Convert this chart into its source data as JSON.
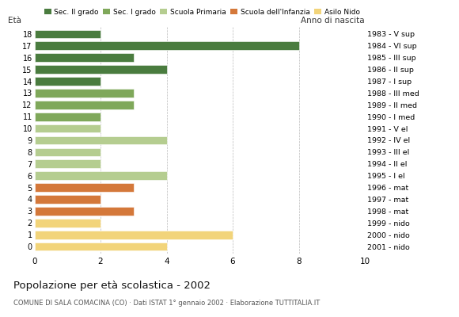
{
  "ages": [
    18,
    17,
    16,
    15,
    14,
    13,
    12,
    11,
    10,
    9,
    8,
    7,
    6,
    5,
    4,
    3,
    2,
    1,
    0
  ],
  "labels_right": [
    "1983 - V sup",
    "1984 - VI sup",
    "1985 - III sup",
    "1986 - II sup",
    "1987 - I sup",
    "1988 - III med",
    "1989 - II med",
    "1990 - I med",
    "1991 - V el",
    "1992 - IV el",
    "1993 - III el",
    "1994 - II el",
    "1995 - I el",
    "1996 - mat",
    "1997 - mat",
    "1998 - mat",
    "1999 - nido",
    "2000 - nido",
    "2001 - nido"
  ],
  "values": [
    2,
    8,
    3,
    4,
    2,
    3,
    3,
    2,
    2,
    4,
    2,
    2,
    4,
    3,
    2,
    3,
    2,
    6,
    4
  ],
  "colors": [
    "#4a7c3f",
    "#4a7c3f",
    "#4a7c3f",
    "#4a7c3f",
    "#4a7c3f",
    "#7fa85a",
    "#7fa85a",
    "#7fa85a",
    "#b5cd90",
    "#b5cd90",
    "#b5cd90",
    "#b5cd90",
    "#b5cd90",
    "#d4783a",
    "#d4783a",
    "#d4783a",
    "#f2d47a",
    "#f2d47a",
    "#f2d47a"
  ],
  "legend_labels": [
    "Sec. II grado",
    "Sec. I grado",
    "Scuola Primaria",
    "Scuola dell'Infanzia",
    "Asilo Nido"
  ],
  "legend_colors": [
    "#4a7c3f",
    "#7fa85a",
    "#b5cd90",
    "#d4783a",
    "#f2d47a"
  ],
  "title": "Popolazione per età scolastica - 2002",
  "subtitle": "COMUNE DI SALA COMACINA (CO) · Dati ISTAT 1° gennaio 2002 · Elaborazione TUTTITALIA.IT",
  "label_left": "Età",
  "label_right": "Anno di nascita",
  "xlim": [
    0,
    10
  ],
  "xticks": [
    0,
    2,
    4,
    6,
    8,
    10
  ],
  "background_color": "#ffffff"
}
